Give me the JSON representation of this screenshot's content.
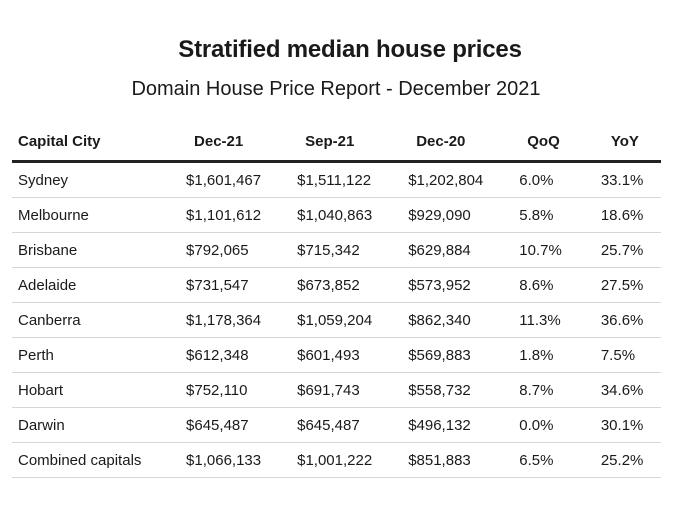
{
  "chart_data": {
    "type": "table",
    "title": "Stratified median house prices",
    "subtitle": "Domain House Price Report - December 2021",
    "columns": [
      "Capital City",
      "Dec-21",
      "Sep-21",
      "Dec-20",
      "QoQ",
      "YoY"
    ],
    "rows": [
      [
        "Sydney",
        "$1,601,467",
        "$1,511,122",
        "$1,202,804",
        "6.0%",
        "33.1%"
      ],
      [
        "Melbourne",
        "$1,101,612",
        "$1,040,863",
        "$929,090",
        "5.8%",
        "18.6%"
      ],
      [
        "Brisbane",
        "$792,065",
        "$715,342",
        "$629,884",
        "10.7%",
        "25.7%"
      ],
      [
        "Adelaide",
        "$731,547",
        "$673,852",
        "$573,952",
        "8.6%",
        "27.5%"
      ],
      [
        "Canberra",
        "$1,178,364",
        "$1,059,204",
        "$862,340",
        "11.3%",
        "36.6%"
      ],
      [
        "Perth",
        "$612,348",
        "$601,493",
        "$569,883",
        "1.8%",
        "7.5%"
      ],
      [
        "Hobart",
        "$752,110",
        "$691,743",
        "$558,732",
        "8.7%",
        "34.6%"
      ],
      [
        "Darwin",
        "$645,487",
        "$645,487",
        "$496,132",
        "0.0%",
        "30.1%"
      ],
      [
        "Combined capitals",
        "$1,066,133",
        "$1,001,222",
        "$851,883",
        "6.5%",
        "25.2%"
      ]
    ]
  }
}
